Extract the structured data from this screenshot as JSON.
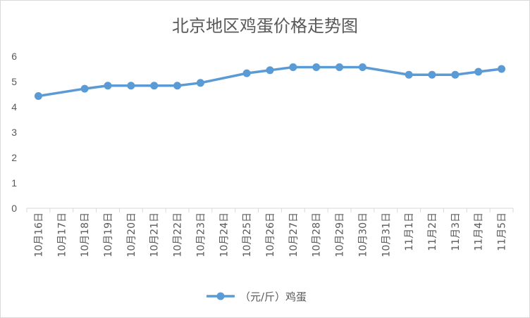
{
  "chart_data": {
    "type": "line",
    "title": "北京地区鸡蛋价格走势图",
    "categories": [
      "10月16日",
      "10月17日",
      "10月18日",
      "10月19日",
      "10月20日",
      "10月21日",
      "10月22日",
      "10月23日",
      "10月24日",
      "10月25日",
      "10月26日",
      "10月27日",
      "10月28日",
      "10月29日",
      "10月30日",
      "10月31日",
      "11月1日",
      "11月2日",
      "11月3日",
      "11月4日",
      "11月5日"
    ],
    "series": [
      {
        "name": "（元/斤）鸡蛋",
        "color": "#5b9bd5",
        "values": [
          4.43,
          null,
          4.72,
          4.84,
          4.84,
          4.84,
          4.84,
          4.95,
          null,
          5.33,
          5.45,
          5.57,
          5.57,
          5.57,
          5.57,
          null,
          5.27,
          5.27,
          5.27,
          5.39,
          5.5
        ]
      }
    ],
    "ylim": [
      0,
      6
    ],
    "yticks": [
      0,
      1,
      2,
      3,
      4,
      5,
      6
    ],
    "legend_position": "bottom",
    "grid": false
  }
}
